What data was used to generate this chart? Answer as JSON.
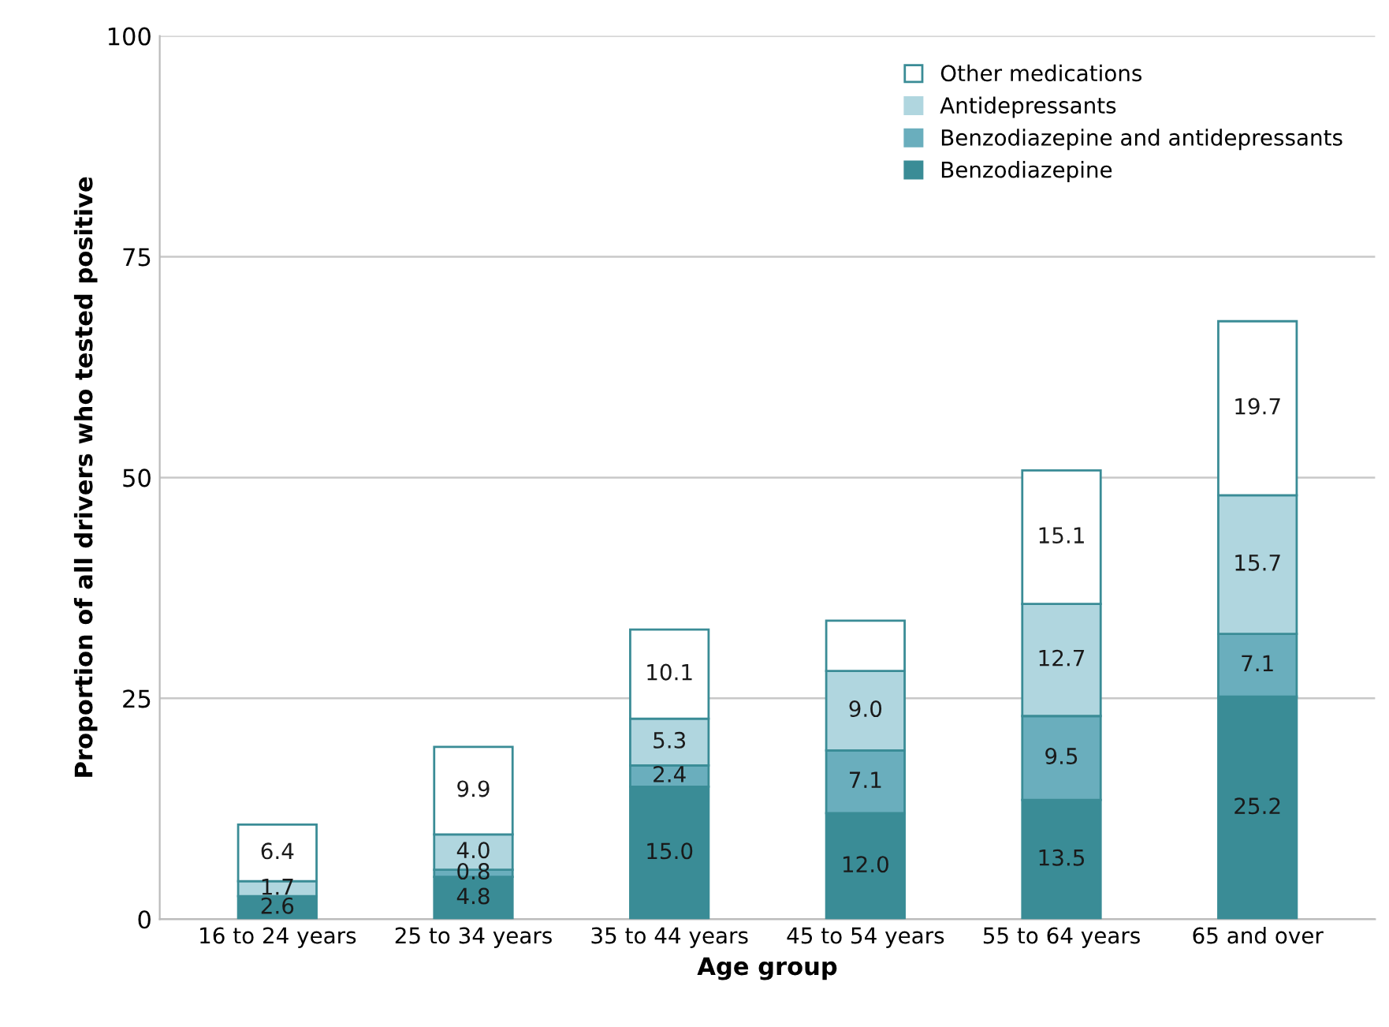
{
  "chart_data": {
    "type": "bar",
    "stacked": true,
    "xlabel": "Age group",
    "ylabel": "Proportion of all drivers who tested positive",
    "categories": [
      "16 to 24 years",
      "25 to 34 years",
      "35 to 44 years",
      "45 to 54 years",
      "55 to 64 years",
      "65 and over"
    ],
    "series": [
      {
        "name": "Benzodiazepine",
        "color": "#3a8c96",
        "values": [
          2.6,
          4.8,
          15.0,
          12.0,
          13.5,
          25.2
        ],
        "value_labels": [
          "2.6",
          "4.8",
          "15.0",
          "12.0",
          "13.5",
          "25.2"
        ]
      },
      {
        "name": "Benzodiazepine and antidepressants",
        "color": "#6aaebd",
        "values": [
          0,
          0.8,
          2.4,
          7.1,
          9.5,
          7.1
        ],
        "value_labels": [
          null,
          "0.8",
          "2.4",
          "7.1",
          "9.5",
          "7.1"
        ]
      },
      {
        "name": "Antidepressants",
        "color": "#b0d6df",
        "values": [
          1.7,
          4.0,
          5.3,
          9.0,
          12.7,
          15.7
        ],
        "value_labels": [
          "1.7",
          "4.0",
          "5.3",
          "9.0",
          "12.7",
          "15.7"
        ]
      },
      {
        "name": "Other medications",
        "color": "#ffffff",
        "values": [
          6.4,
          9.9,
          10.1,
          5.7,
          15.1,
          19.7
        ],
        "value_labels": [
          "6.4",
          "9.9",
          "10.1",
          null,
          "15.1",
          "19.7"
        ]
      }
    ],
    "ylim": [
      0,
      100
    ],
    "yticks": [
      0,
      25,
      50,
      75,
      100
    ],
    "grid": "y",
    "legend": "top right"
  }
}
